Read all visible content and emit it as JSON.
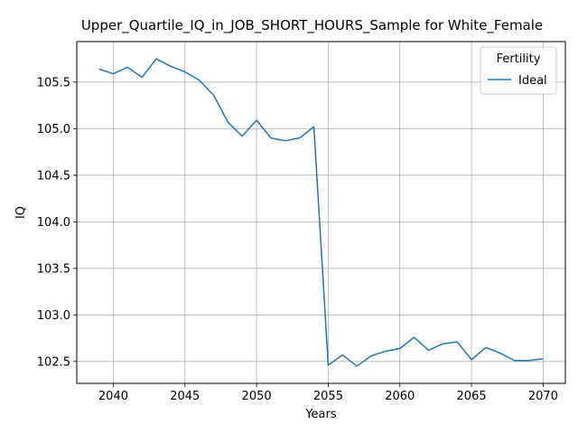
{
  "chart_data": {
    "type": "line",
    "title": "Upper_Quartile_IQ_in_JOB_SHORT_HOURS_Sample for White_Female",
    "xlabel": "Years",
    "ylabel": "IQ",
    "xlim": [
      2037.45,
      2071.55
    ],
    "ylim": [
      102.265,
      105.935
    ],
    "xticks": [
      2040,
      2045,
      2050,
      2055,
      2060,
      2065,
      2070
    ],
    "yticks": [
      102.5,
      103.0,
      103.5,
      104.0,
      104.5,
      105.0,
      105.5
    ],
    "ytick_labels": [
      "102.5",
      "103.0",
      "103.5",
      "104.0",
      "104.5",
      "105.0",
      "105.5"
    ],
    "grid": true,
    "legend": {
      "title": "Fertility",
      "placement": "top-right"
    },
    "series": [
      {
        "name": "Ideal",
        "color": "#1f77b4",
        "x": [
          2039,
          2040,
          2041,
          2042,
          2043,
          2044,
          2045,
          2046,
          2047,
          2048,
          2049,
          2050,
          2051,
          2052,
          2053,
          2054,
          2055,
          2056,
          2057,
          2058,
          2059,
          2060,
          2061,
          2062,
          2063,
          2064,
          2065,
          2066,
          2067,
          2068,
          2069,
          2070
        ],
        "values": [
          105.64,
          105.59,
          105.66,
          105.55,
          105.75,
          105.67,
          105.61,
          105.52,
          105.36,
          105.07,
          104.92,
          105.09,
          104.9,
          104.87,
          104.9,
          105.02,
          102.46,
          102.57,
          102.45,
          102.56,
          102.61,
          102.64,
          102.76,
          102.62,
          102.69,
          102.71,
          102.52,
          102.65,
          102.59,
          102.51,
          102.51,
          102.53
        ]
      }
    ]
  }
}
